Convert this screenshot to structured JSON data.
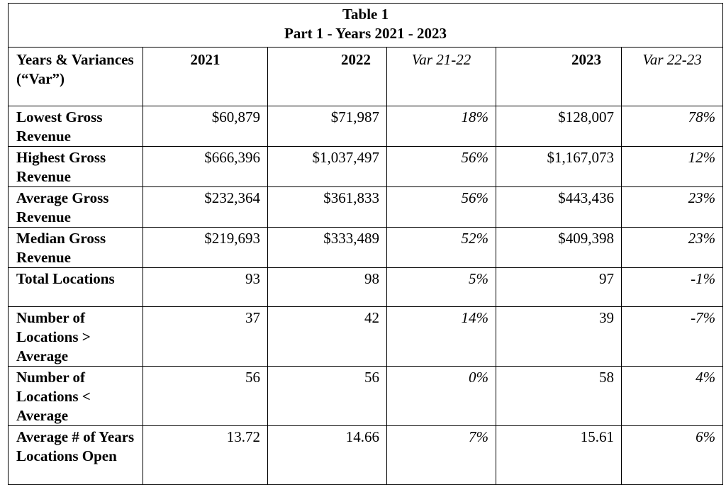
{
  "caption": {
    "title": "Table 1",
    "subtitle": "Part 1 - Years 2021 - 2023"
  },
  "headers": {
    "label": "Years & Variances (“Var”)",
    "y2021": "2021",
    "y2022": "2022",
    "var2122": "Var 21-22",
    "y2023": "2023",
    "var2223": "Var 22-23"
  },
  "rows": [
    {
      "label": "Lowest Gross Revenue",
      "y2021": "$60,879",
      "y2022": "$71,987",
      "var2122": "18%",
      "y2023": "$128,007",
      "var2223": "78%"
    },
    {
      "label": "Highest Gross Revenue",
      "y2021": "$666,396",
      "y2022": "$1,037,497",
      "var2122": "56%",
      "y2023": "$1,167,073",
      "var2223": "12%"
    },
    {
      "label": "Average Gross Revenue",
      "y2021": "$232,364",
      "y2022": "$361,833",
      "var2122": "56%",
      "y2023": "$443,436",
      "var2223": "23%"
    },
    {
      "label": "Median Gross Revenue",
      "y2021": "$219,693",
      "y2022": "$333,489",
      "var2122": "52%",
      "y2023": "$409,398",
      "var2223": "23%"
    },
    {
      "label": "Total Locations",
      "y2021": "93",
      "y2022": "98",
      "var2122": "5%",
      "y2023": "97",
      "var2223": "-1%"
    },
    {
      "label": "Number of Locations > Average",
      "y2021": "37",
      "y2022": "42",
      "var2122": "14%",
      "y2023": "39",
      "var2223": "-7%"
    },
    {
      "label": "Number of Locations < Average",
      "y2021": "56",
      "y2022": "56",
      "var2122": "0%",
      "y2023": "58",
      "var2223": "4%"
    },
    {
      "label": "Average # of Years Locations Open",
      "y2021": "13.72",
      "y2022": "14.66",
      "var2122": "7%",
      "y2023": "15.61",
      "var2223": "6%"
    }
  ]
}
